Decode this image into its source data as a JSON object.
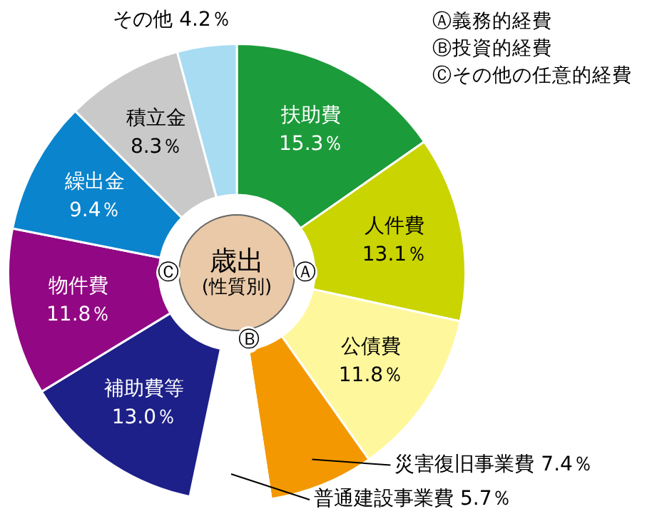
{
  "chart_data": {
    "type": "donut",
    "title": "歳出",
    "subtitle": "(性質別)",
    "categories": [
      "扶助費",
      "人件費",
      "公債費",
      "災害復旧事業費",
      "普通建設事業費",
      "補助費等",
      "物件費",
      "繰出金",
      "積立金",
      "その他"
    ],
    "values": [
      15.3,
      13.1,
      11.8,
      7.4,
      5.7,
      13.0,
      11.8,
      9.4,
      8.3,
      4.2
    ],
    "value_labels": [
      "15.3％",
      "13.1％",
      "11.8％",
      "7.4％",
      "5.7％",
      "13.0％",
      "11.8％",
      "9.4％",
      "8.3％",
      "4.2％"
    ],
    "colors": [
      "#1c9b3a",
      "#c9d400",
      "#fff79c",
      "#f39800",
      "#ffffff",
      "#1d2088",
      "#920783",
      "#0a84cc",
      "#c9c9c9",
      "#a7dcf3"
    ],
    "annotations": [
      "Ⓐ義務的経費",
      "Ⓑ投資的経費",
      "Ⓒその他の任意的経費",
      "Ⓐ",
      "Ⓑ",
      "Ⓒ"
    ],
    "legend": false
  }
}
